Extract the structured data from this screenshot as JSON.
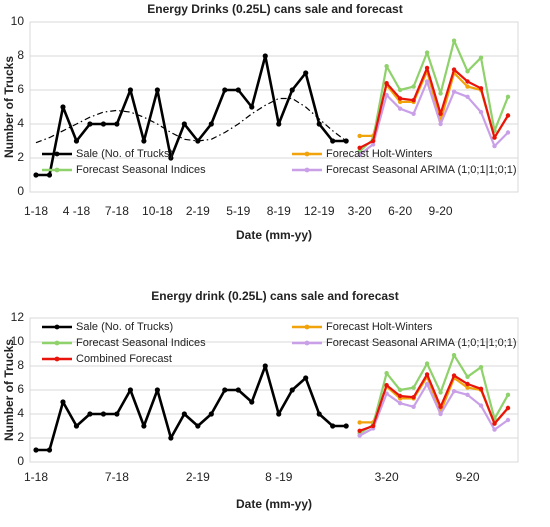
{
  "chart_data": [
    {
      "type": "line",
      "title": "Energy Drinks (0.25L) cans sale and forecast",
      "xlabel": "Date (mm-yy)",
      "ylabel": "Number of Trucks",
      "categories": [
        "1-18",
        null,
        null,
        "4 -18",
        null,
        null,
        "7-18",
        null,
        null,
        "10-18",
        null,
        null,
        "2-19",
        null,
        null,
        "5-19",
        null,
        null,
        "8-19",
        null,
        null,
        "12-19",
        null,
        null,
        "3-20",
        null,
        null,
        "6-20",
        null,
        null,
        "9-20",
        null,
        null,
        null,
        null,
        null
      ],
      "ylim": [
        0,
        10
      ],
      "yticks": [
        0,
        2,
        4,
        6,
        8,
        10
      ],
      "grid": true,
      "legend": "lower",
      "series": [
        {
          "name": "Sale (No. of Trucks)",
          "color": "#000000",
          "values": [
            1,
            1,
            5,
            3,
            4,
            4,
            4,
            6,
            3,
            6,
            2,
            4,
            3,
            4,
            6,
            6,
            5,
            8,
            4,
            6,
            7,
            4,
            3,
            3,
            null,
            null,
            null,
            null,
            null,
            null,
            null,
            null,
            null,
            null,
            null,
            null
          ]
        },
        {
          "name": "Forecast Holt-Winters",
          "color": "#f0a30a",
          "values": [
            null,
            null,
            null,
            null,
            null,
            null,
            null,
            null,
            null,
            null,
            null,
            null,
            null,
            null,
            null,
            null,
            null,
            null,
            null,
            null,
            null,
            null,
            null,
            null,
            3.3,
            3.3,
            6.3,
            5.3,
            5.3,
            7.1,
            4.2,
            7.0,
            6.2,
            6.0,
            3.2,
            4.5
          ]
        },
        {
          "name": "Forecast Seasonal Indices",
          "color": "#8fd16a",
          "values": [
            null,
            null,
            null,
            null,
            null,
            null,
            null,
            null,
            null,
            null,
            null,
            null,
            null,
            null,
            null,
            null,
            null,
            null,
            null,
            null,
            null,
            null,
            null,
            null,
            2.4,
            3.1,
            7.4,
            6.0,
            6.2,
            8.2,
            5.8,
            8.9,
            7.1,
            7.9,
            3.6,
            5.6
          ]
        },
        {
          "name": "Forecast Seasonal ARIMA (1;0;1|1;0;1)",
          "color": "#c9a0e8",
          "values": [
            null,
            null,
            null,
            null,
            null,
            null,
            null,
            null,
            null,
            null,
            null,
            null,
            null,
            null,
            null,
            null,
            null,
            null,
            null,
            null,
            null,
            null,
            null,
            null,
            2.2,
            2.8,
            5.7,
            4.9,
            4.6,
            6.5,
            4.0,
            5.9,
            5.6,
            4.7,
            2.7,
            3.5
          ]
        },
        {
          "color": "#e8140c",
          "values": [
            null,
            null,
            null,
            null,
            null,
            null,
            null,
            null,
            null,
            null,
            null,
            null,
            null,
            null,
            null,
            null,
            null,
            null,
            null,
            null,
            null,
            null,
            null,
            null,
            2.6,
            3.0,
            6.4,
            5.5,
            5.4,
            7.3,
            4.6,
            7.2,
            6.5,
            6.1,
            3.2,
            4.5
          ]
        },
        {
          "color": "#000000",
          "dashed": true,
          "values": [
            2.9,
            3.2,
            3.6,
            4.0,
            4.4,
            4.7,
            4.8,
            4.7,
            4.4,
            4.0,
            3.5,
            3.1,
            3.0,
            3.1,
            3.5,
            4.0,
            4.6,
            5.1,
            5.5,
            5.5,
            5.0,
            4.3,
            3.6,
            3.0,
            null,
            null,
            null,
            null,
            null,
            null,
            null,
            null,
            null,
            null,
            null,
            null
          ]
        }
      ]
    },
    {
      "type": "line",
      "title": "Energy drink (0.25L) cans sale and forecast",
      "xlabel": "Date (mm-yy)",
      "ylabel": "Number of Trucks",
      "categories": [
        "1-18",
        null,
        null,
        null,
        null,
        null,
        "7-18",
        null,
        null,
        null,
        null,
        null,
        "2-19",
        null,
        null,
        null,
        null,
        null,
        "8 -19",
        null,
        null,
        null,
        null,
        null,
        null,
        null,
        "3-20",
        null,
        null,
        null,
        null,
        null,
        "9-20",
        null,
        null,
        null
      ],
      "ylim": [
        0,
        12
      ],
      "yticks": [
        0,
        2,
        4,
        6,
        8,
        10,
        12
      ],
      "grid": true,
      "legend": "upper",
      "series": [
        {
          "name": "Sale (No. of Trucks)",
          "color": "#000000",
          "values": [
            1,
            1,
            5,
            3,
            4,
            4,
            4,
            6,
            3,
            6,
            2,
            4,
            3,
            4,
            6,
            6,
            5,
            8,
            4,
            6,
            7,
            4,
            3,
            3,
            null,
            null,
            null,
            null,
            null,
            null,
            null,
            null,
            null,
            null,
            null,
            null
          ]
        },
        {
          "name": "Forecast Holt-Winters",
          "color": "#f0a30a",
          "values": [
            null,
            null,
            null,
            null,
            null,
            null,
            null,
            null,
            null,
            null,
            null,
            null,
            null,
            null,
            null,
            null,
            null,
            null,
            null,
            null,
            null,
            null,
            null,
            null,
            3.3,
            3.3,
            6.3,
            5.3,
            5.3,
            7.1,
            4.2,
            7.0,
            6.2,
            6.0,
            3.2,
            4.5
          ]
        },
        {
          "name": "Forecast Seasonal Indices",
          "color": "#8fd16a",
          "values": [
            null,
            null,
            null,
            null,
            null,
            null,
            null,
            null,
            null,
            null,
            null,
            null,
            null,
            null,
            null,
            null,
            null,
            null,
            null,
            null,
            null,
            null,
            null,
            null,
            2.4,
            3.1,
            7.4,
            6.0,
            6.2,
            8.2,
            5.8,
            8.9,
            7.1,
            7.9,
            3.6,
            5.6
          ]
        },
        {
          "name": "Forecast Seasonal ARIMA (1;0;1|1;0;1)",
          "color": "#c9a0e8",
          "values": [
            null,
            null,
            null,
            null,
            null,
            null,
            null,
            null,
            null,
            null,
            null,
            null,
            null,
            null,
            null,
            null,
            null,
            null,
            null,
            null,
            null,
            null,
            null,
            null,
            2.2,
            2.8,
            5.7,
            4.9,
            4.6,
            6.5,
            4.0,
            5.9,
            5.6,
            4.7,
            2.7,
            3.5
          ]
        },
        {
          "name": "Combined Forecast",
          "color": "#e8140c",
          "values": [
            null,
            null,
            null,
            null,
            null,
            null,
            null,
            null,
            null,
            null,
            null,
            null,
            null,
            null,
            null,
            null,
            null,
            null,
            null,
            null,
            null,
            null,
            null,
            null,
            2.6,
            3.0,
            6.4,
            5.5,
            5.4,
            7.3,
            4.6,
            7.2,
            6.5,
            6.1,
            3.2,
            4.5
          ]
        }
      ]
    }
  ]
}
